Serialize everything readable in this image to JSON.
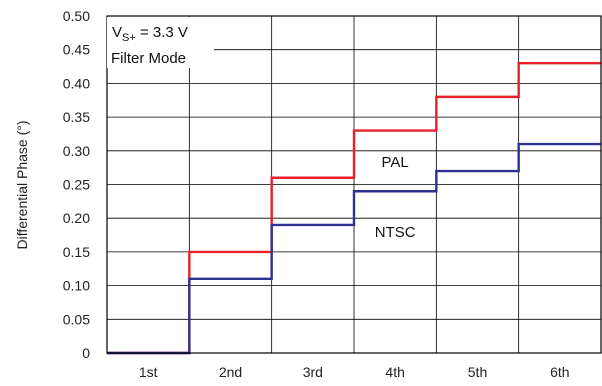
{
  "chart_data": {
    "type": "line",
    "step": true,
    "categories": [
      "1st",
      "2nd",
      "3rd",
      "4th",
      "5th",
      "6th"
    ],
    "series": [
      {
        "name": "PAL",
        "color": "#e8202a",
        "values": [
          0,
          0.15,
          0.26,
          0.33,
          0.38,
          0.43
        ]
      },
      {
        "name": "NTSC",
        "color": "#2e3192",
        "values": [
          0,
          0.11,
          0.19,
          0.24,
          0.27,
          0.31
        ]
      }
    ],
    "ylabel": "Differential Phase (°)",
    "ylim": [
      0,
      0.5
    ],
    "y_ticks": [
      "0",
      "0.05",
      "0.10",
      "0.15",
      "0.20",
      "0.25",
      "0.30",
      "0.35",
      "0.40",
      "0.45",
      "0.50"
    ],
    "grid": true,
    "annotations": {
      "supply_main": "V",
      "supply_sub": "S+",
      "supply_value": " = 3.3 V",
      "mode": "Filter Mode"
    }
  }
}
